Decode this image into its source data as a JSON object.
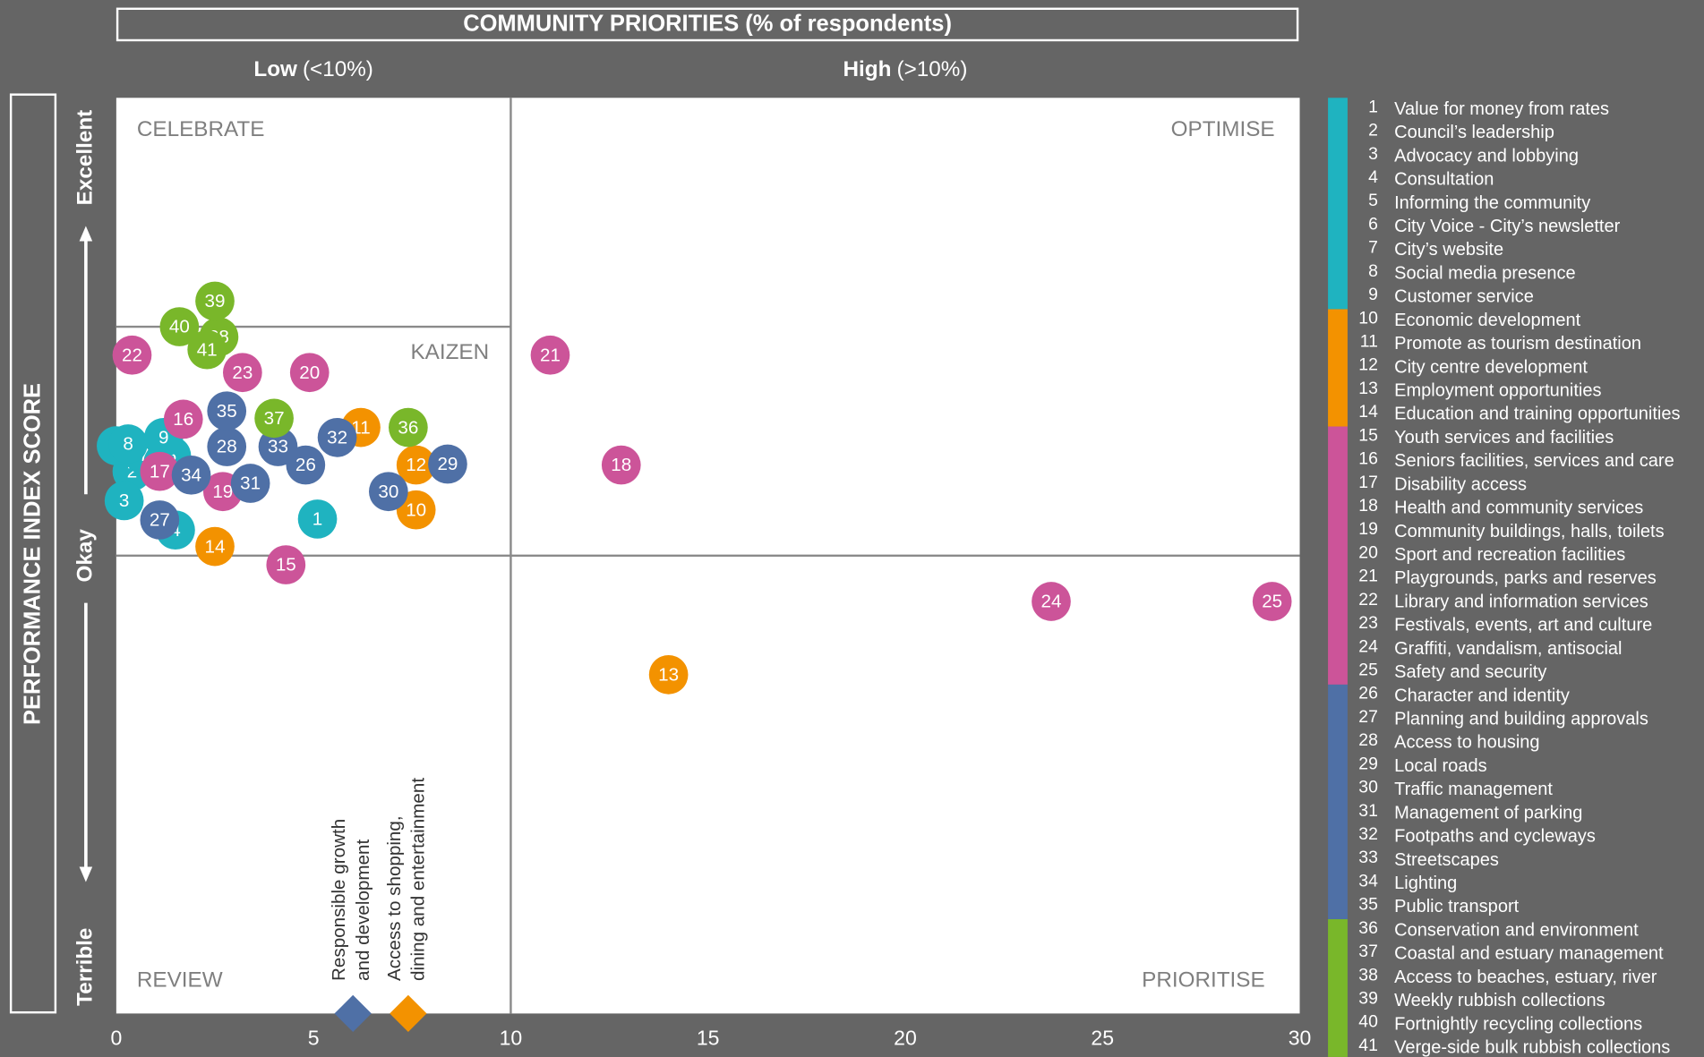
{
  "chart_data": {
    "type": "scatter",
    "title": "COMMUNITY PRIORITIES (% of respondents)",
    "column_labels": [
      {
        "strong": "Low",
        "rest": "(<10%)"
      },
      {
        "strong": "High",
        "rest": "(>10%)"
      }
    ],
    "y_title": "PERFORMANCE INDEX SCORE",
    "xlim": [
      0,
      30
    ],
    "xticks": [
      0,
      5,
      10,
      15,
      20,
      25,
      30
    ],
    "ylim": [
      0,
      100
    ],
    "yticks": [
      {
        "value": 0,
        "label": "Terrible"
      },
      {
        "value": 50,
        "label": "Okay"
      },
      {
        "value": 100,
        "label": "Excellent"
      }
    ],
    "x_threshold": 10,
    "y_threshold": 50,
    "kaizen_threshold": 75,
    "quadrants": [
      "CELEBRATE",
      "KAIZEN",
      "OPTIMISE",
      "REVIEW",
      "PRIORITISE"
    ],
    "groups": [
      {
        "color": "#1fb3c0"
      },
      {
        "color": "#f39200"
      },
      {
        "color": "#cc5499"
      },
      {
        "color": "#4f70a6"
      },
      {
        "color": "#79b72a"
      }
    ],
    "points": [
      {
        "number": 1,
        "name": "Value for money from rates",
        "group": 0,
        "x": 5.1,
        "y": 54
      },
      {
        "number": 2,
        "name": "Council’s leadership",
        "group": 0,
        "x": 0.4,
        "y": 59.2
      },
      {
        "number": 3,
        "name": "Advocacy and lobbying",
        "group": 0,
        "x": 0.2,
        "y": 56
      },
      {
        "number": 4,
        "name": "Consultation",
        "group": 0,
        "x": 1.5,
        "y": 52.8
      },
      {
        "number": 5,
        "name": "Informing the community",
        "group": 0,
        "x": 1.4,
        "y": 60.9
      },
      {
        "number": 6,
        "name": "City Voice - City’s newsletter",
        "group": 0,
        "x": 0,
        "y": 62
      },
      {
        "number": 7,
        "name": "City’s website",
        "group": 0,
        "x": 0.7,
        "y": 61
      },
      {
        "number": 8,
        "name": "Social media presence",
        "group": 0,
        "x": 0.3,
        "y": 62.2
      },
      {
        "number": 9,
        "name": "Customer service",
        "group": 0,
        "x": 1.2,
        "y": 62.9
      },
      {
        "number": 10,
        "name": "Economic development",
        "group": 1,
        "x": 7.6,
        "y": 55
      },
      {
        "number": 11,
        "name": "Promote as tourism destination",
        "group": 1,
        "x": 6.2,
        "y": 64
      },
      {
        "number": 12,
        "name": "City centre development",
        "group": 1,
        "x": 7.6,
        "y": 59.9
      },
      {
        "number": 13,
        "name": "Employment opportunities",
        "group": 1,
        "x": 14,
        "y": 37
      },
      {
        "number": 14,
        "name": "Education and training opportunities",
        "group": 1,
        "x": 2.5,
        "y": 51
      },
      {
        "number": 15,
        "name": "Youth services and facilities",
        "group": 2,
        "x": 4.3,
        "y": 49
      },
      {
        "number": 16,
        "name": "Seniors facilities, services and care",
        "group": 2,
        "x": 1.7,
        "y": 64.9
      },
      {
        "number": 17,
        "name": "Disability access",
        "group": 2,
        "x": 1.1,
        "y": 59.2
      },
      {
        "number": 18,
        "name": "Health and community services",
        "group": 2,
        "x": 12.8,
        "y": 59.9
      },
      {
        "number": 19,
        "name": "Community buildings, halls, toilets",
        "group": 2,
        "x": 2.7,
        "y": 57
      },
      {
        "number": 20,
        "name": "Sport and recreation facilities",
        "group": 2,
        "x": 4.9,
        "y": 70
      },
      {
        "number": 21,
        "name": "Playgrounds, parks and reserves",
        "group": 2,
        "x": 11,
        "y": 71.9
      },
      {
        "number": 22,
        "name": "Library and information services",
        "group": 2,
        "x": 0.4,
        "y": 71.9
      },
      {
        "number": 23,
        "name": "Festivals, events, art and culture",
        "group": 2,
        "x": 3.2,
        "y": 70
      },
      {
        "number": 24,
        "name": "Graffiti, vandalism, antisocial",
        "group": 2,
        "x": 23.7,
        "y": 45
      },
      {
        "number": 25,
        "name": "Safety and security",
        "group": 2,
        "x": 29.3,
        "y": 45
      },
      {
        "number": 26,
        "name": "Character and identity",
        "group": 3,
        "x": 4.8,
        "y": 59.9
      },
      {
        "number": 27,
        "name": "Planning and building approvals",
        "group": 3,
        "x": 1.1,
        "y": 53.9
      },
      {
        "number": 28,
        "name": "Access to housing",
        "group": 3,
        "x": 2.8,
        "y": 61.9
      },
      {
        "number": 29,
        "name": "Local roads",
        "group": 3,
        "x": 8.4,
        "y": 60
      },
      {
        "number": 30,
        "name": "Traffic management",
        "group": 3,
        "x": 6.9,
        "y": 57
      },
      {
        "number": 31,
        "name": "Management of parking",
        "group": 3,
        "x": 3.4,
        "y": 57.9
      },
      {
        "number": 32,
        "name": "Footpaths and cycleways",
        "group": 3,
        "x": 5.6,
        "y": 62.9
      },
      {
        "number": 33,
        "name": "Streetscapes",
        "group": 3,
        "x": 4.1,
        "y": 61.9
      },
      {
        "number": 34,
        "name": "Lighting",
        "group": 3,
        "x": 1.9,
        "y": 58.8
      },
      {
        "number": 35,
        "name": "Public transport",
        "group": 3,
        "x": 2.8,
        "y": 65.8
      },
      {
        "number": 36,
        "name": "Conservation and environment",
        "group": 4,
        "x": 7.4,
        "y": 64
      },
      {
        "number": 37,
        "name": "Coastal and estuary management",
        "group": 4,
        "x": 4,
        "y": 65
      },
      {
        "number": 38,
        "name": "Access to beaches, estuary, river",
        "group": 4,
        "x": 2.6,
        "y": 73.9
      },
      {
        "number": 39,
        "name": "Weekly rubbish collections",
        "group": 4,
        "x": 2.5,
        "y": 77.8
      },
      {
        "number": 40,
        "name": "Fortnightly recycling collections",
        "group": 4,
        "x": 1.6,
        "y": 75
      },
      {
        "number": 41,
        "name": "Verge-side bulk rubbish collections",
        "group": 4,
        "x": 2.3,
        "y": 72.5
      }
    ],
    "markers": [
      {
        "lines": [
          "Responsible growth",
          "and development"
        ],
        "x": 6,
        "y": 0,
        "color": "#4f70a6"
      },
      {
        "lines": [
          "Access to shopping,",
          "dining and entertainment"
        ],
        "x": 7.4,
        "y": 0,
        "color": "#f39200"
      }
    ]
  }
}
